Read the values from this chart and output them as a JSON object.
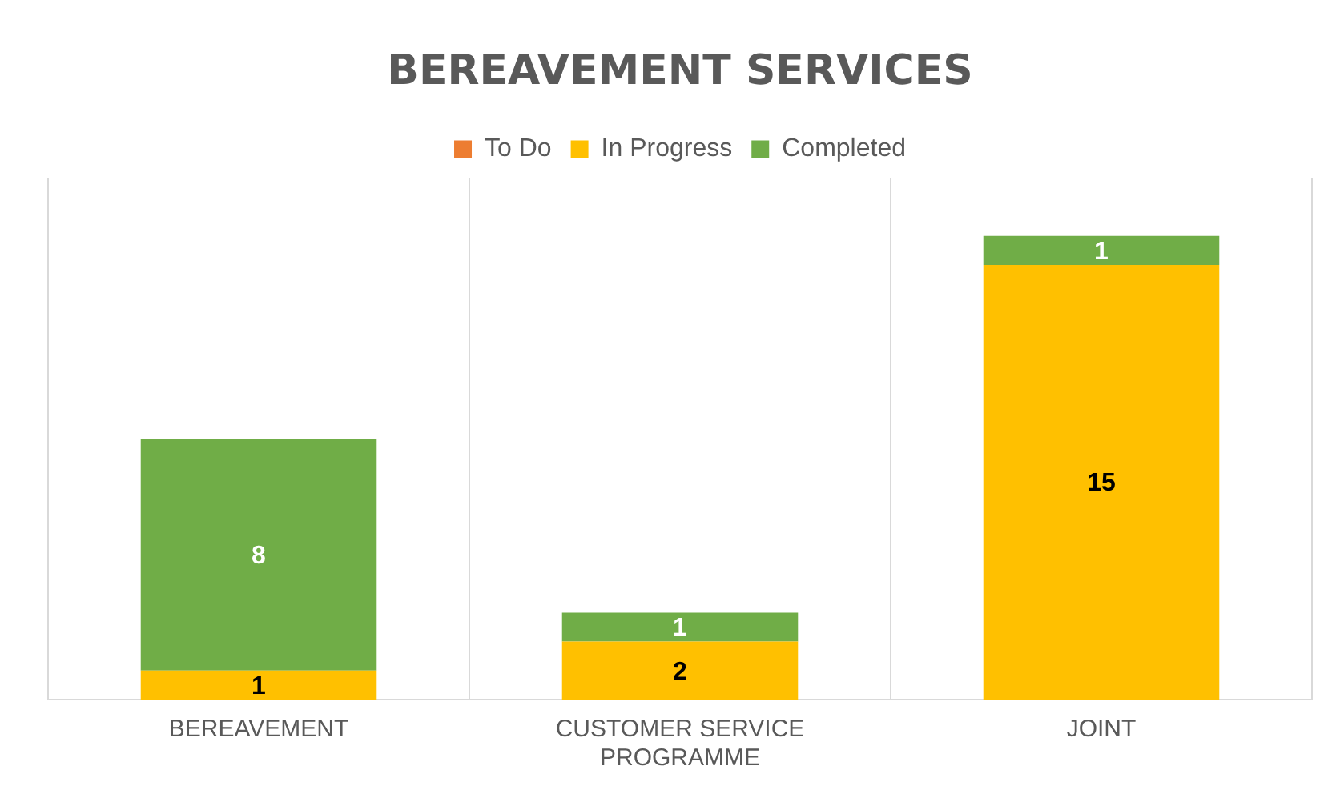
{
  "chart_data": {
    "type": "bar",
    "title": "BEREAVEMENT SERVICES",
    "categories": [
      "BEREAVEMENT",
      "CUSTOMER SERVICE PROGRAMME",
      "JOINT"
    ],
    "series": [
      {
        "name": "To Do",
        "color": "#ed7d31",
        "values": [
          null,
          null,
          null
        ]
      },
      {
        "name": "In Progress",
        "color": "#ffc000",
        "values": [
          1,
          2,
          15
        ]
      },
      {
        "name": "Completed",
        "color": "#70ad47",
        "values": [
          8,
          1,
          1
        ]
      }
    ],
    "stacked": true,
    "ylim": [
      0,
      18
    ],
    "tick_labels": "x",
    "grid": "x",
    "legend": "top",
    "data_labels": true
  }
}
